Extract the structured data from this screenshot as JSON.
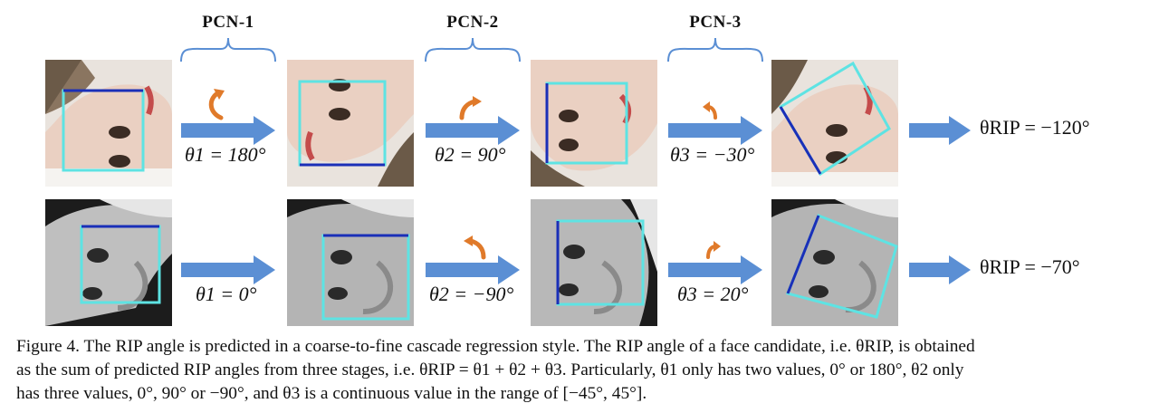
{
  "stages": [
    "PCN-1",
    "PCN-2",
    "PCN-3"
  ],
  "rows": [
    {
      "angles": [
        "θ1 = 180°",
        "θ2 = 90°",
        "θ3 = −30°"
      ],
      "result": "θRIP = −120°"
    },
    {
      "angles": [
        "θ1 = 0°",
        "θ2 = −90°",
        "θ3 = 20°"
      ],
      "result": "θRIP = −70°"
    }
  ],
  "caption": {
    "line1": "Figure 4. The RIP angle is predicted in a coarse-to-fine cascade regression style. The RIP angle of a face candidate, i.e. θRIP, is obtained",
    "line2": "as the sum of predicted RIP angles from three stages, i.e. θRIP = θ1 + θ2 + θ3. Particularly, θ1 only has two values, 0° or 180°, θ2 only",
    "line3": "has three values, 0°, 90° or −90°, and θ3 is a continuous value in the range of [−45°, 45°]."
  },
  "colors": {
    "arrow": "#5b8fd4",
    "rotate_arrow": "#e07a2a",
    "box_light": "#5ee3e3",
    "box_dark": "#1a2fb8"
  }
}
